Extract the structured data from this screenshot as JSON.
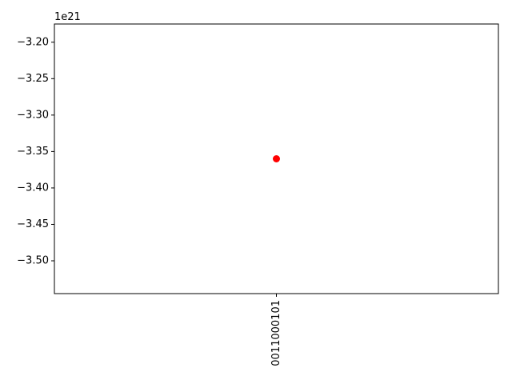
{
  "chart_data": {
    "type": "scatter",
    "title": "",
    "xlabel": "",
    "ylabel": "",
    "categories": [
      "0011000101"
    ],
    "x": [
      "0011000101"
    ],
    "y": [
      -3.36e+21
    ],
    "marker_color": "#ff0000",
    "ylim": [
      -3.545e+21,
      -3.175e+21
    ],
    "y_offset_label": "1e21",
    "y_ticks": [
      {
        "value": -3.2,
        "label": "−3.20"
      },
      {
        "value": -3.25,
        "label": "−3.25"
      },
      {
        "value": -3.3,
        "label": "−3.30"
      },
      {
        "value": -3.35,
        "label": "−3.35"
      },
      {
        "value": -3.4,
        "label": "−3.40"
      },
      {
        "value": -3.45,
        "label": "−3.45"
      },
      {
        "value": -3.5,
        "label": "−3.50"
      }
    ],
    "x_tick_rotation": "vertical",
    "grid": false,
    "legend": "none"
  }
}
